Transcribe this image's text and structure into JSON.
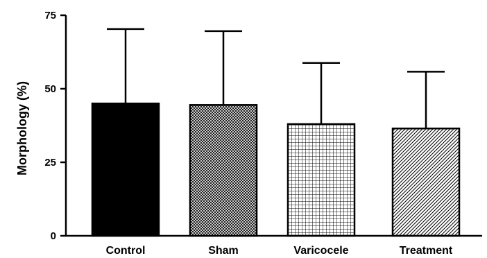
{
  "chart_data": {
    "type": "bar",
    "title": "",
    "xlabel": "",
    "ylabel": "Morphology (%)",
    "ylim": [
      0,
      75
    ],
    "yticks": [
      0,
      25,
      50,
      75
    ],
    "grid": false,
    "categories": [
      "Control",
      "Sham",
      "Varicocele",
      "Treatment"
    ],
    "values": [
      45,
      44.5,
      38,
      36.5
    ],
    "error_upper": [
      70.3,
      69.6,
      58.8,
      55.8
    ],
    "bar_fills": [
      "solid-black",
      "dense-crosshatch",
      "grid",
      "diagonal-hatch"
    ],
    "colors": {
      "bar_edge": "#000000",
      "axis": "#000000"
    }
  }
}
